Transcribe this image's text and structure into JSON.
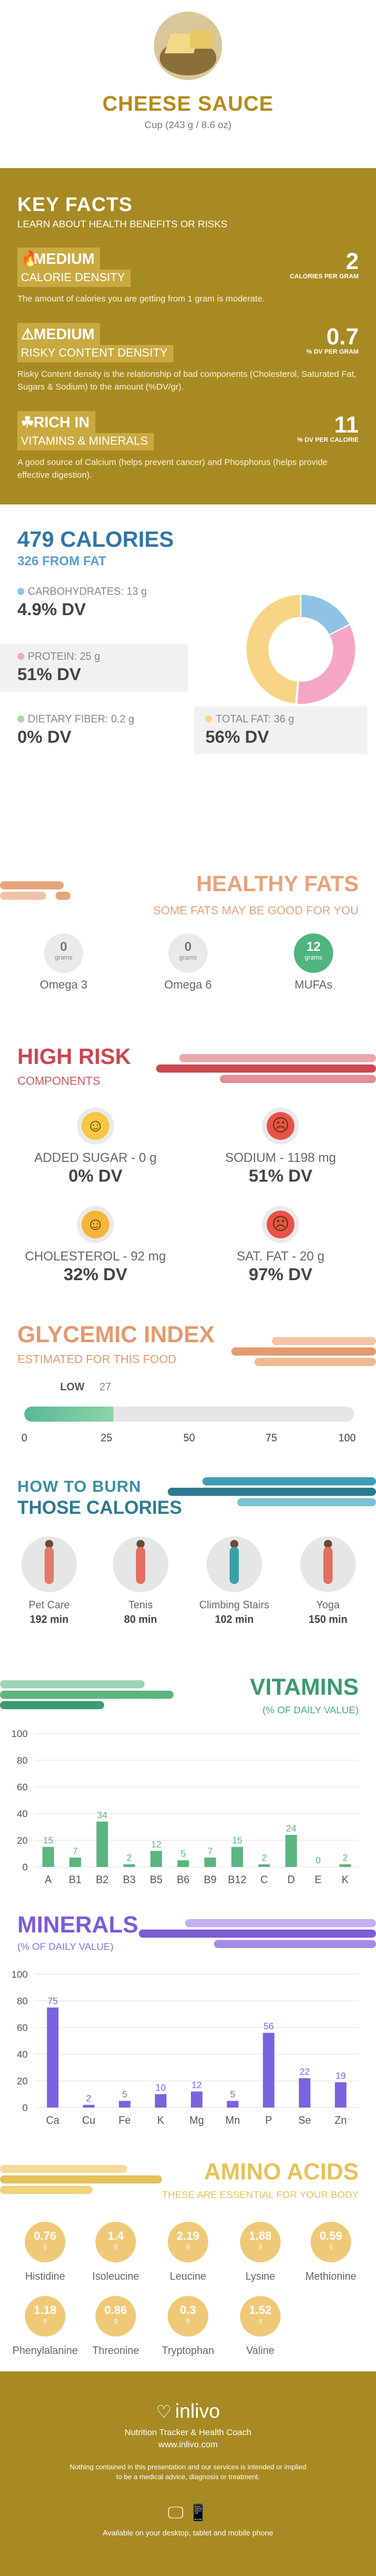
{
  "header": {
    "title": "CHEESE SAUCE",
    "serving": "Cup (243 g / 8.6 oz)"
  },
  "key_facts": {
    "title": "KEY FACTS",
    "subtitle": "LEARN ABOUT HEALTH BENEFITS OR RISKS",
    "items": [
      {
        "icon": "flame-icon",
        "level": "MEDIUM",
        "label": "CALORIE DENSITY",
        "value": "2",
        "unit": "CALORIES PER GRAM",
        "desc": "The amount of calories you are getting from 1 gram is moderate."
      },
      {
        "icon": "warning-icon",
        "level": "MEDIUM",
        "label": "RISKY CONTENT DENSITY",
        "value": "0.7",
        "unit": "% DV PER GRAM",
        "desc": "Risky Content density is the relationship of bad components (Cholesterol, Saturated Fat, Sugars & Sodium) to the amount (%DV/gr)."
      },
      {
        "icon": "leaf-icon",
        "level": "RICH IN",
        "label": "VITAMINS & MINERALS",
        "value": "11",
        "unit": "% DV PER CALORIE",
        "desc": "A good source of Calcium (helps prevent cancer) and Phosphorus (helps provide effective digestion)."
      }
    ]
  },
  "calories": {
    "title": "479 CALORIES",
    "from_fat": "326 FROM FAT",
    "nutrients": [
      {
        "label": "CARBOHYDRATES: 13 g",
        "dv": "4.9% DV",
        "color": "#8ec3e6"
      },
      {
        "label": "PROTEIN: 25 g",
        "dv": "51% DV",
        "color": "#f5a6c7"
      },
      {
        "label": "DIETARY FIBER: 0.2 g",
        "dv": "0% DV",
        "color": "#a8d8a0"
      },
      {
        "label": "TOTAL FAT: 36 g",
        "dv": "56% DV",
        "color": "#f8d487"
      }
    ],
    "donut": [
      {
        "name": "carbohydrates",
        "value": 13,
        "color": "#8ec3e6"
      },
      {
        "name": "protein",
        "value": 25,
        "color": "#f5a6c7"
      },
      {
        "name": "fiber",
        "value": 0.2,
        "color": "#a8d8a0"
      },
      {
        "name": "fat",
        "value": 36,
        "color": "#f8d487"
      }
    ]
  },
  "healthy_fats": {
    "title": "HEALTHY FATS",
    "subtitle": "SOME FATS MAY BE GOOD FOR YOU",
    "unit": "grams",
    "items": [
      {
        "name": "Omega 3",
        "value": "0",
        "highlight": false
      },
      {
        "name": "Omega 6",
        "value": "0",
        "highlight": false
      },
      {
        "name": "MUFAs",
        "value": "12",
        "highlight": true
      }
    ]
  },
  "high_risk": {
    "title": "HIGH RISK",
    "subtitle": "COMPONENTS",
    "items": [
      {
        "name": "ADDED SUGAR - 0 g",
        "dv": "0% DV",
        "mood": "happy"
      },
      {
        "name": "SODIUM - 1198 mg",
        "dv": "51% DV",
        "mood": "sad"
      },
      {
        "name": "CHOLESTEROL - 92 mg",
        "dv": "32% DV",
        "mood": "neutral"
      },
      {
        "name": "SAT. FAT - 20 g",
        "dv": "97% DV",
        "mood": "sad"
      }
    ]
  },
  "glycemic": {
    "title": "GLYCEMIC INDEX",
    "subtitle": "ESTIMATED FOR THIS FOOD",
    "level": "LOW",
    "value": "27",
    "fill": 0.27,
    "ticks": [
      "0",
      "25",
      "50",
      "75",
      "100"
    ]
  },
  "burn": {
    "title_small": "HOW TO BURN",
    "title": "THOSE CALORIES",
    "activities": [
      {
        "name": "Pet Care",
        "minutes": "192 min",
        "color": "#e27a6a"
      },
      {
        "name": "Tenis",
        "minutes": "80 min",
        "color": "#e46f5f"
      },
      {
        "name": "Climbing Stairs",
        "minutes": "102 min",
        "color": "#3aa0a8"
      },
      {
        "name": "Yoga",
        "minutes": "150 min",
        "color": "#e46f5f"
      }
    ]
  },
  "vitamins": {
    "title": "VITAMINS",
    "subtitle": "(% OF DAILY VALUE)",
    "color": "#5bb57f",
    "chart_data": {
      "type": "bar",
      "categories": [
        "A",
        "B1",
        "B2",
        "B3",
        "B5",
        "B6",
        "B9",
        "B12",
        "C",
        "D",
        "E",
        "K"
      ],
      "values": [
        15,
        7,
        34,
        2,
        12,
        5,
        7,
        15,
        2,
        24,
        0,
        2
      ],
      "ylim": [
        0,
        100
      ],
      "yticks": [
        "0",
        "20",
        "40",
        "60",
        "80",
        "100"
      ]
    }
  },
  "minerals": {
    "title": "MINERALS",
    "subtitle": "(% OF DAILY VALUE)",
    "color": "#7d62e0",
    "chart_data": {
      "type": "bar",
      "categories": [
        "Ca",
        "Cu",
        "Fe",
        "K",
        "Mg",
        "Mn",
        "P",
        "Se",
        "Zn"
      ],
      "values": [
        75,
        2,
        5,
        10,
        12,
        5,
        56,
        22,
        19
      ],
      "ylim": [
        0,
        100
      ],
      "yticks": [
        "0",
        "20",
        "40",
        "60",
        "80",
        "100"
      ]
    }
  },
  "amino": {
    "title": "AMINO ACIDS",
    "subtitle": "THESE ARE ESSENTIAL FOR YOUR BODY",
    "unit": "g",
    "items": [
      {
        "name": "Histidine",
        "value": "0.76"
      },
      {
        "name": "Isoleucine",
        "value": "1.4"
      },
      {
        "name": "Leucine",
        "value": "2.19"
      },
      {
        "name": "Lysine",
        "value": "1.88"
      },
      {
        "name": "Methionine",
        "value": "0.59"
      },
      {
        "name": "Phenylalanine",
        "value": "1.18"
      },
      {
        "name": "Threonine",
        "value": "0.86"
      },
      {
        "name": "Tryptophan",
        "value": "0.3"
      },
      {
        "name": "Valine",
        "value": "1.52"
      }
    ]
  },
  "footer": {
    "brand": "inlivo",
    "tagline": "Nutrition Tracker & Health Coach",
    "url": "www.inlivo.com",
    "disclaimer": "Nothing contained in this presentation and our services is intended or implied to be a medical advice, diagnosis or treatment.",
    "available": "Available on your desktop, tablet and mobile phone"
  }
}
